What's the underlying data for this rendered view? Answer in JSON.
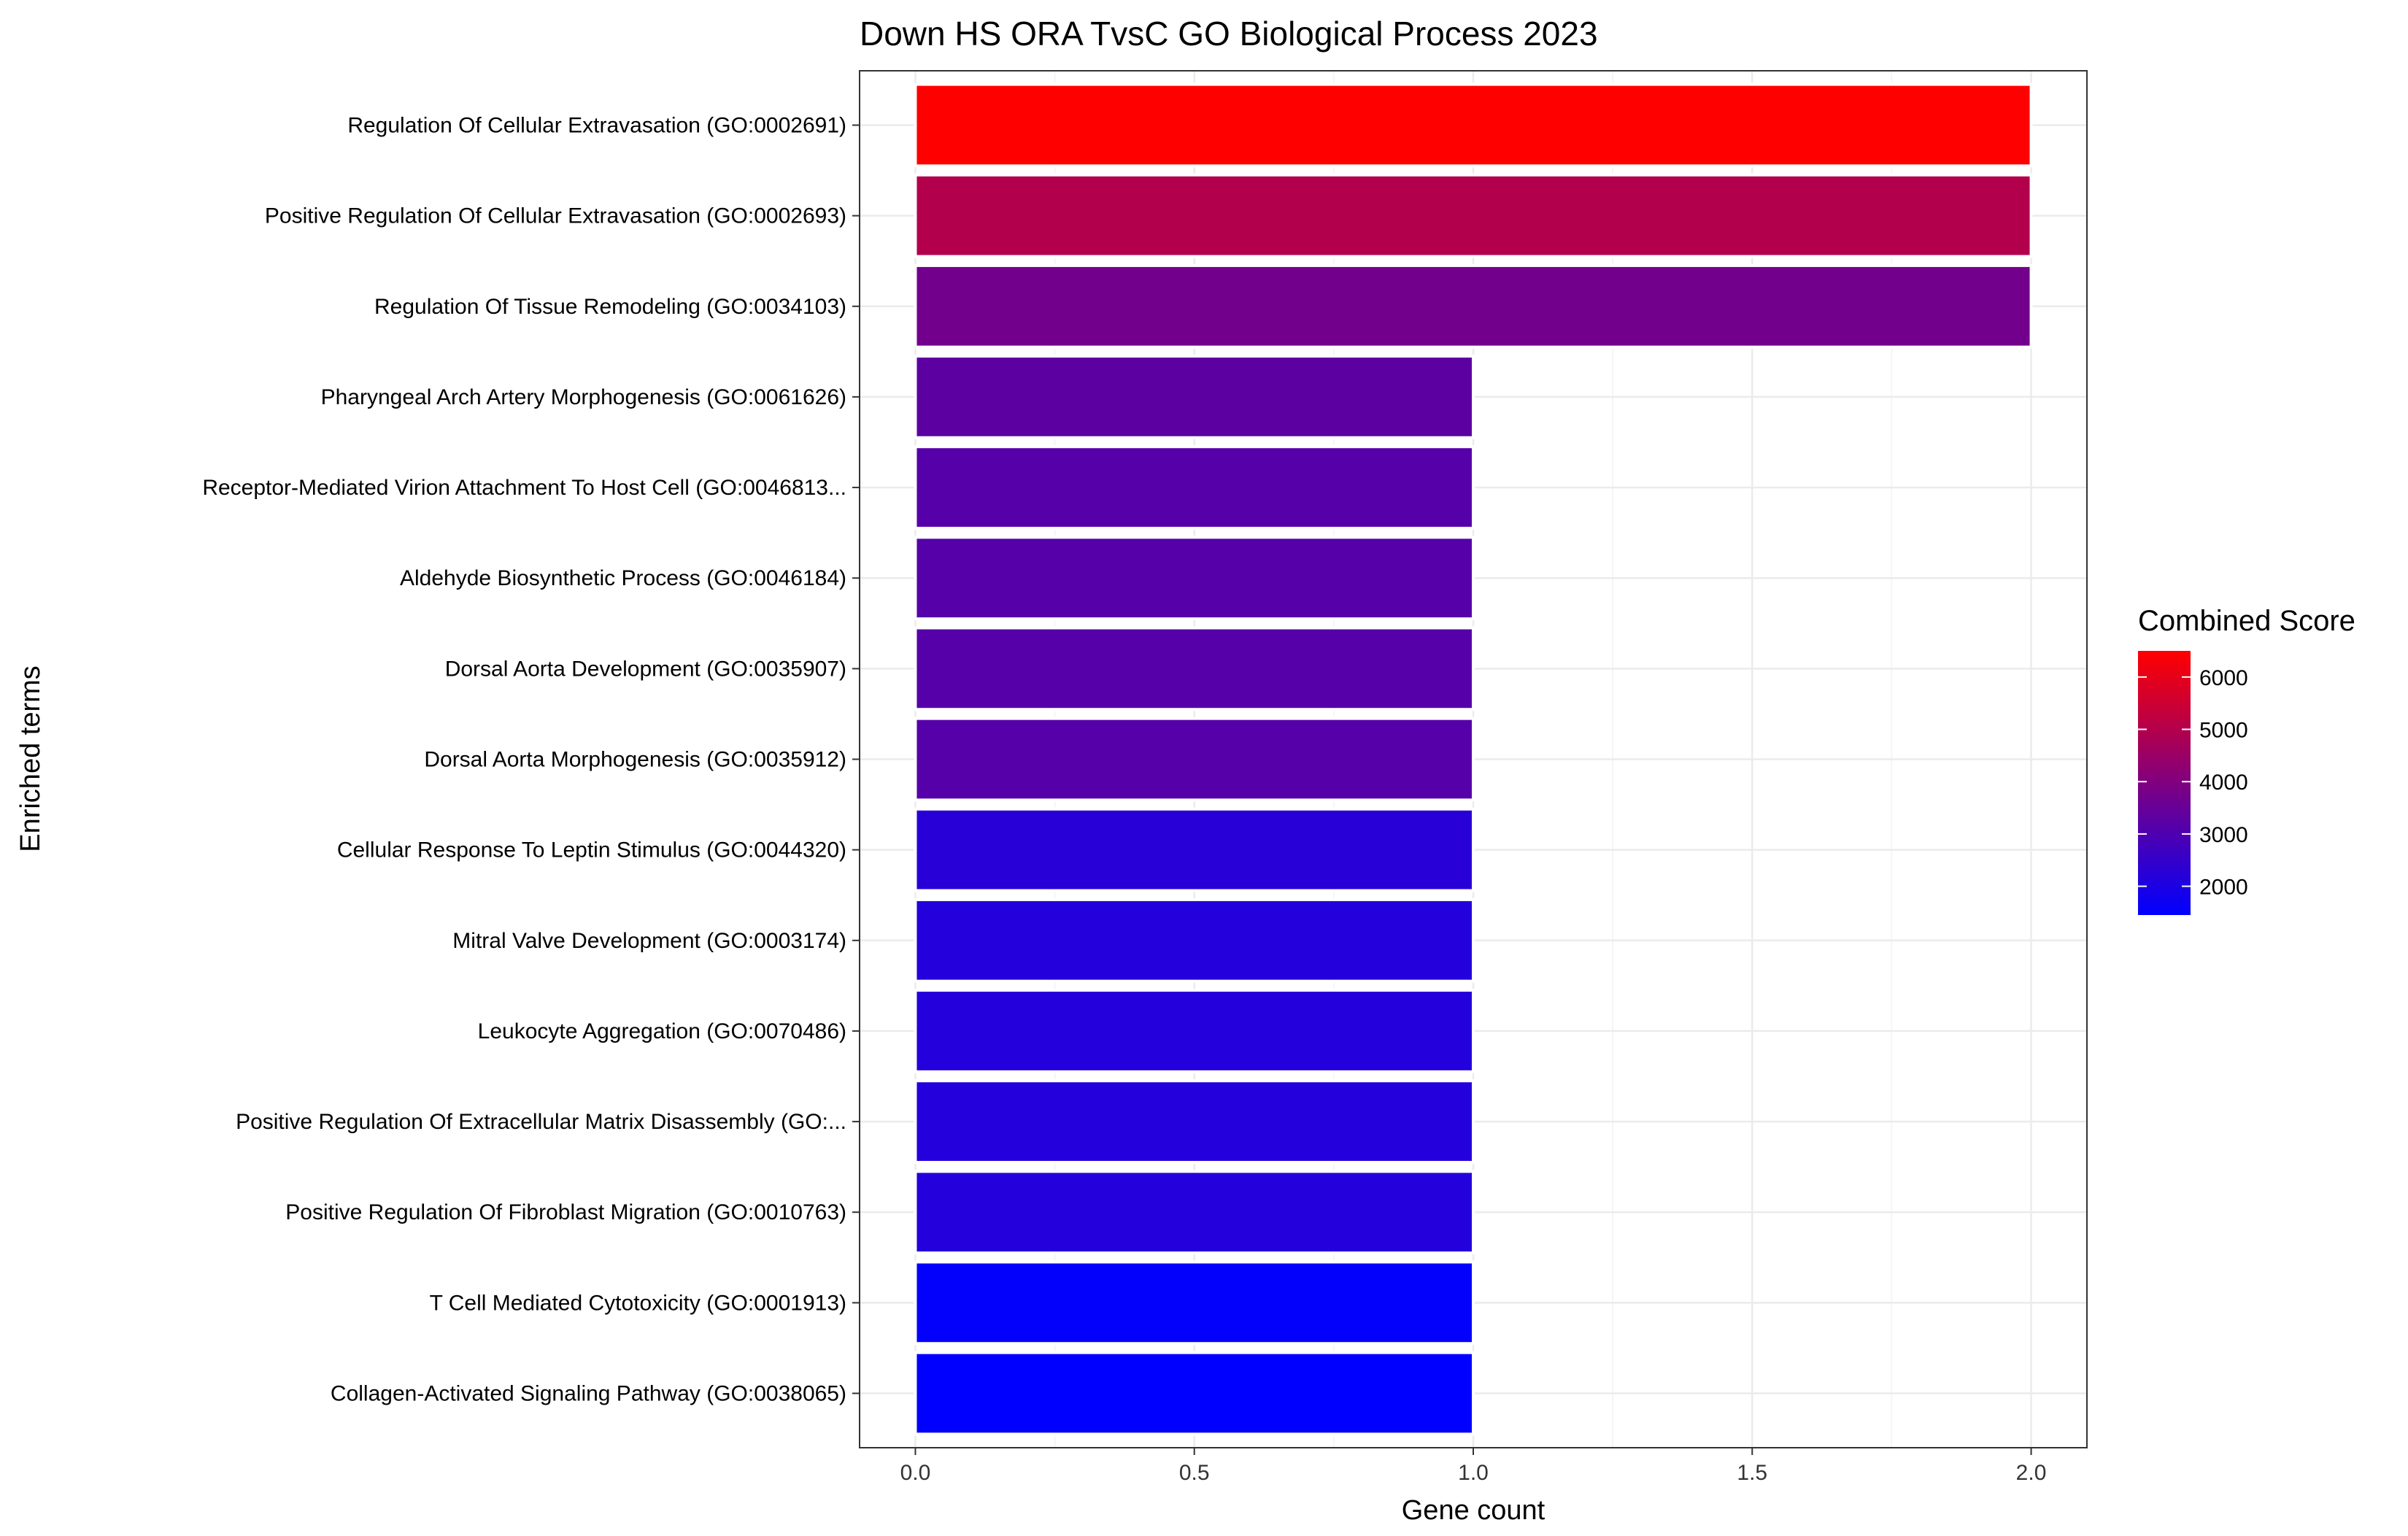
{
  "chart_data": {
    "type": "bar",
    "orientation": "horizontal",
    "title": "Down HS ORA TvsC GO Biological Process 2023",
    "xlabel": "Gene count",
    "ylabel": "Enriched terms",
    "xlim": [
      -0.1,
      2.1
    ],
    "xticks": [
      "0.0",
      "0.5",
      "1.0",
      "1.5",
      "2.0"
    ],
    "xtick_values": [
      0,
      0.5,
      1.0,
      1.5,
      2.0
    ],
    "grid": true,
    "legend": {
      "title": "Combined Score",
      "placement": "right",
      "min": 1450,
      "max": 6500,
      "ticks": [
        "2000",
        "3000",
        "4000",
        "5000",
        "6000"
      ],
      "tick_values": [
        2000,
        3000,
        4000,
        5000,
        6000
      ],
      "color_low": "#0000ff",
      "color_high": "#ff0000"
    },
    "categories": [
      "Regulation Of Cellular Extravasation (GO:0002691)",
      "Positive Regulation Of Cellular Extravasation (GO:0002693)",
      "Regulation Of Tissue Remodeling (GO:0034103)",
      "Pharyngeal Arch Artery Morphogenesis (GO:0061626)",
      "Receptor-Mediated Virion Attachment To Host Cell (GO:0046813...",
      "Aldehyde Biosynthetic Process (GO:0046184)",
      "Dorsal Aorta Development (GO:0035907)",
      "Dorsal Aorta Morphogenesis (GO:0035912)",
      "Cellular Response To Leptin Stimulus (GO:0044320)",
      "Mitral Valve Development (GO:0003174)",
      "Leukocyte Aggregation (GO:0070486)",
      "Positive Regulation Of Extracellular Matrix Disassembly (GO:...",
      "Positive Regulation Of Fibroblast Migration (GO:0010763)",
      "T Cell Mediated Cytotoxicity (GO:0001913)",
      "Collagen-Activated Signaling Pathway (GO:0038065)"
    ],
    "values": [
      2,
      2,
      2,
      1,
      1,
      1,
      1,
      1,
      1,
      1,
      1,
      1,
      1,
      1,
      1
    ],
    "combined_scores": [
      6500,
      5000,
      3700,
      3300,
      3150,
      3150,
      3150,
      3150,
      2250,
      2150,
      2150,
      2150,
      2150,
      1500,
      1450
    ]
  }
}
